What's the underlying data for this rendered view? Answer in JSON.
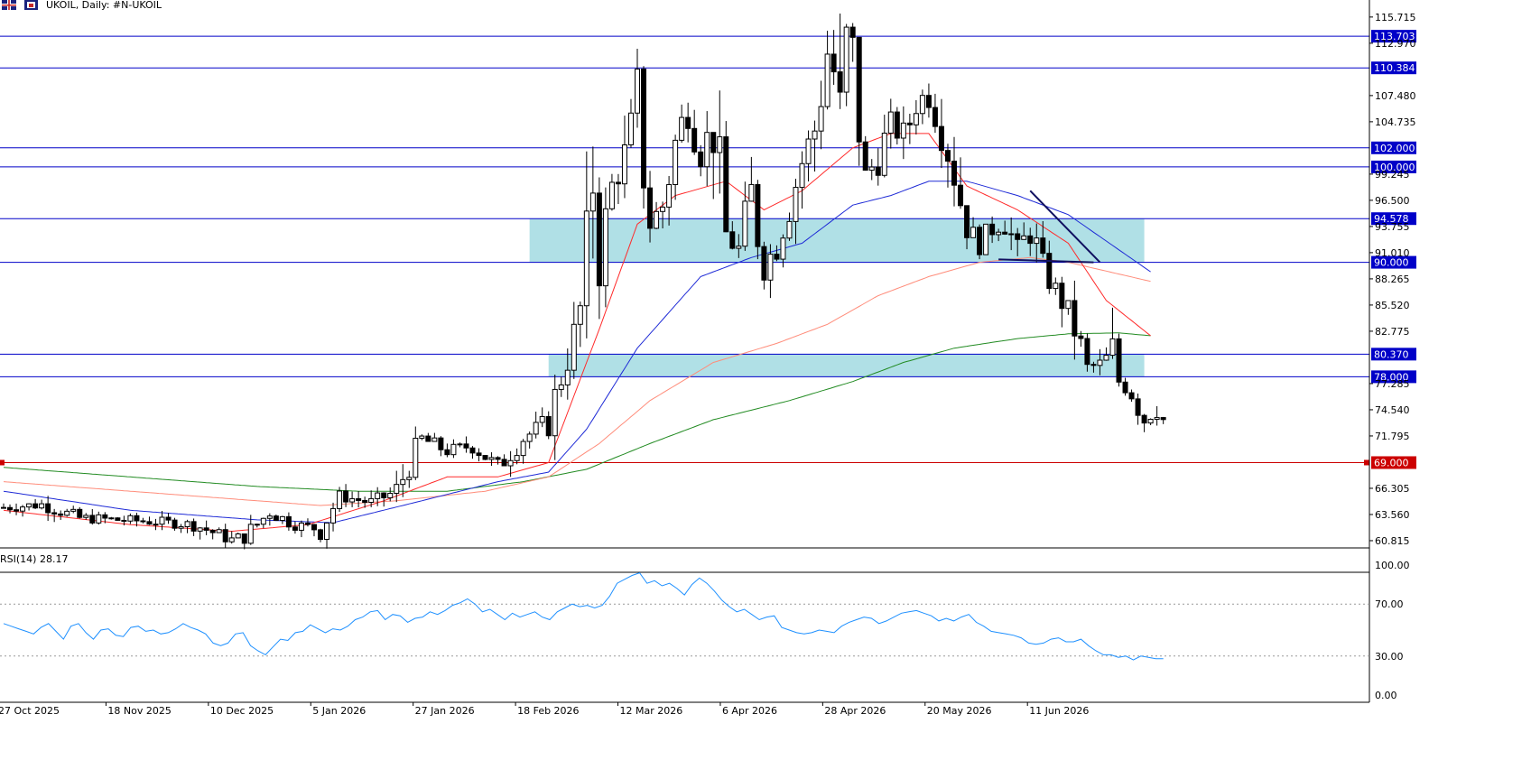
{
  "header": {
    "symbol_label": "UKOIL, Daily:  #N-UKOIL",
    "icon_flag": "uk-flag-icon",
    "icon_instrument": "instrument-icon"
  },
  "rsi": {
    "label": "RSI(14) 28.17",
    "levels": [
      "100.00",
      "70.00",
      "30.00",
      "0.00"
    ]
  },
  "chart_data": [
    {
      "type": "candlestick",
      "title": "UKOIL, Daily:  #N-UKOIL",
      "ylim": [
        57.5,
        117.5
      ],
      "ytick_labels": [
        "115.715",
        "112.970",
        "107.480",
        "104.735",
        "99.245",
        "96.500",
        "93.755",
        "91.010",
        "88.265",
        "85.520",
        "82.775",
        "77.285",
        "74.540",
        "71.795",
        "66.305",
        "63.560",
        "60.815"
      ],
      "yticks": [
        115.715,
        112.97,
        107.48,
        104.735,
        99.245,
        96.5,
        93.755,
        91.01,
        88.265,
        85.52,
        82.775,
        77.285,
        74.54,
        71.795,
        66.305,
        63.56,
        60.815
      ],
      "x_dates": [
        "27 Oct 2025",
        "18 Nov 2025",
        "10 Dec 2025",
        "5 Jan 2026",
        "27 Jan 2026",
        "18 Feb 2026",
        "12 Mar 2026",
        "6 Apr 2026",
        "28 Apr 2026",
        "20 May 2026",
        "11 Jun 2026"
      ],
      "x_date_index": [
        0,
        16,
        32,
        48,
        64,
        80,
        96,
        112,
        128,
        144,
        160
      ],
      "bar_count": 173,
      "level_lines": [
        {
          "value": 113.703,
          "label": "113.703",
          "color": "#0000c8"
        },
        {
          "value": 110.384,
          "label": "110.384",
          "color": "#0000c8"
        },
        {
          "value": 102.0,
          "label": "102.000",
          "color": "#0000c8"
        },
        {
          "value": 100.0,
          "label": "100.000",
          "color": "#0000c8"
        },
        {
          "value": 94.578,
          "label": "94.578",
          "color": "#0000c8"
        },
        {
          "value": 90.0,
          "label": "90.000",
          "color": "#0000c8"
        },
        {
          "value": 80.37,
          "label": "80.370",
          "color": "#0000c8"
        },
        {
          "value": 78.0,
          "label": "78.000",
          "color": "#0000c8"
        },
        {
          "value": 69.0,
          "label": "69.000",
          "color": "#cc0000"
        }
      ],
      "zones": [
        {
          "from_bar": 83,
          "to_bar": 180,
          "low": 90.0,
          "high": 94.578
        },
        {
          "from_bar": 86,
          "to_bar": 180,
          "low": 78.0,
          "high": 80.37
        }
      ],
      "anchors": [
        [
          0,
          64.3
        ],
        [
          6,
          64.6
        ],
        [
          12,
          63.2
        ],
        [
          18,
          63.0
        ],
        [
          24,
          62.8
        ],
        [
          30,
          62.5
        ],
        [
          36,
          60.9
        ],
        [
          38,
          61.3
        ],
        [
          42,
          63.8
        ],
        [
          46,
          62.5
        ],
        [
          50,
          62.0
        ],
        [
          53,
          65.5
        ],
        [
          58,
          64.8
        ],
        [
          62,
          66.0
        ],
        [
          66,
          71.5
        ],
        [
          70,
          70.2
        ],
        [
          74,
          70.8
        ],
        [
          78,
          68.5
        ],
        [
          82,
          71.5
        ],
        [
          86,
          73.5
        ],
        [
          88,
          78.0
        ],
        [
          90,
          82.0
        ],
        [
          92,
          88.0
        ],
        [
          93,
          99.5
        ],
        [
          94,
          90.0
        ],
        [
          96,
          98.0
        ],
        [
          98,
          101.0
        ],
        [
          100,
          106.5
        ],
        [
          102,
          94.0
        ],
        [
          104,
          96.0
        ],
        [
          106,
          102.5
        ],
        [
          108,
          106.5
        ],
        [
          110,
          101.5
        ],
        [
          112,
          104.5
        ],
        [
          114,
          93.0
        ],
        [
          116,
          91.0
        ],
        [
          118,
          97.0
        ],
        [
          120,
          89.5
        ],
        [
          122,
          92.0
        ],
        [
          124,
          96.0
        ],
        [
          126,
          100.5
        ],
        [
          128,
          104.0
        ],
        [
          130,
          112.0
        ],
        [
          131,
          110.0
        ],
        [
          132,
          104.0
        ],
        [
          133,
          113.5
        ],
        [
          134,
          111.0
        ],
        [
          135,
          104.5
        ],
        [
          136,
          99.0
        ],
        [
          138,
          101.0
        ],
        [
          140,
          104.5
        ],
        [
          142,
          103.0
        ],
        [
          144,
          106.5
        ],
        [
          146,
          108.0
        ],
        [
          148,
          104.0
        ],
        [
          150,
          99.5
        ],
        [
          152,
          93.5
        ],
        [
          154,
          92.0
        ],
        [
          156,
          93.5
        ],
        [
          158,
          94.5
        ],
        [
          160,
          91.0
        ],
        [
          162,
          93.5
        ],
        [
          164,
          89.5
        ],
        [
          166,
          87.0
        ],
        [
          167,
          86.0
        ],
        [
          169,
          83.0
        ],
        [
          171,
          79.0
        ],
        [
          173,
          79.2
        ],
        [
          175,
          80.5
        ],
        [
          176,
          77.5
        ],
        [
          178,
          76.5
        ],
        [
          180,
          73.5
        ],
        [
          182,
          75.0
        ],
        [
          183,
          73.5
        ]
      ],
      "ma_red": [
        [
          0,
          64.0
        ],
        [
          20,
          62.5
        ],
        [
          36,
          61.8
        ],
        [
          48,
          62.5
        ],
        [
          60,
          65.0
        ],
        [
          70,
          67.5
        ],
        [
          78,
          67.5
        ],
        [
          86,
          69.0
        ],
        [
          94,
          83.0
        ],
        [
          100,
          94.0
        ],
        [
          106,
          97.0
        ],
        [
          114,
          98.5
        ],
        [
          120,
          95.5
        ],
        [
          126,
          97.5
        ],
        [
          134,
          102.0
        ],
        [
          140,
          103.5
        ],
        [
          146,
          103.5
        ],
        [
          152,
          98.0
        ],
        [
          160,
          95.5
        ],
        [
          168,
          92.0
        ],
        [
          174,
          86.0
        ],
        [
          181,
          82.3
        ]
      ],
      "ma_blue": [
        [
          0,
          66.0
        ],
        [
          20,
          64.0
        ],
        [
          40,
          63.0
        ],
        [
          52,
          62.7
        ],
        [
          66,
          65.0
        ],
        [
          78,
          67.0
        ],
        [
          86,
          68.0
        ],
        [
          92,
          72.5
        ],
        [
          100,
          81.0
        ],
        [
          110,
          88.5
        ],
        [
          118,
          90.5
        ],
        [
          126,
          92.0
        ],
        [
          134,
          96.0
        ],
        [
          140,
          97.0
        ],
        [
          146,
          98.5
        ],
        [
          152,
          98.5
        ],
        [
          160,
          97.0
        ],
        [
          168,
          95.0
        ],
        [
          181,
          89.0
        ]
      ],
      "ma_salmon": [
        [
          0,
          67.0
        ],
        [
          20,
          66.0
        ],
        [
          36,
          65.2
        ],
        [
          50,
          64.5
        ],
        [
          62,
          65.0
        ],
        [
          76,
          66.0
        ],
        [
          86,
          67.5
        ],
        [
          94,
          71.0
        ],
        [
          102,
          75.5
        ],
        [
          112,
          79.5
        ],
        [
          122,
          81.5
        ],
        [
          130,
          83.5
        ],
        [
          138,
          86.5
        ],
        [
          146,
          88.5
        ],
        [
          154,
          90.0
        ],
        [
          162,
          90.5
        ],
        [
          168,
          90.0
        ],
        [
          181,
          88.0
        ]
      ],
      "ma_green": [
        [
          0,
          68.5
        ],
        [
          20,
          67.5
        ],
        [
          40,
          66.5
        ],
        [
          56,
          66.0
        ],
        [
          70,
          66.0
        ],
        [
          82,
          67.0
        ],
        [
          92,
          68.3
        ],
        [
          102,
          71.0
        ],
        [
          112,
          73.5
        ],
        [
          124,
          75.5
        ],
        [
          134,
          77.5
        ],
        [
          142,
          79.5
        ],
        [
          150,
          81.0
        ],
        [
          160,
          82.0
        ],
        [
          168,
          82.5
        ],
        [
          176,
          82.6
        ],
        [
          181,
          82.3
        ]
      ],
      "trend_lines": [
        {
          "from": [
            162,
            97.5
          ],
          "to": [
            173,
            90.0
          ]
        },
        {
          "from": [
            157,
            90.3
          ],
          "to": [
            172,
            90.0
          ]
        }
      ]
    },
    {
      "type": "line",
      "title": "RSI(14) 28.17",
      "ylim": [
        0,
        100
      ],
      "yticks": [
        100,
        70,
        30,
        0
      ],
      "ytick_labels": [
        "100.00",
        "70.00",
        "30.00",
        "0.00"
      ],
      "levels": [
        70,
        30
      ],
      "series": [
        {
          "color": "#1e90ff",
          "values": [
            55,
            53,
            51,
            49,
            47,
            52,
            55,
            49,
            43,
            53,
            55,
            48,
            43,
            50,
            51,
            46,
            45,
            52,
            53,
            49,
            50,
            47,
            48,
            51,
            55,
            52,
            50,
            47,
            40,
            38,
            40,
            47,
            48,
            38,
            34,
            31,
            37,
            43,
            42,
            48,
            49,
            54,
            51,
            48,
            51,
            50,
            53,
            58,
            60,
            64,
            65,
            58,
            62,
            61,
            56,
            59,
            60,
            64,
            62,
            65,
            69,
            71,
            74,
            70,
            64,
            66,
            62,
            58,
            63,
            60,
            62,
            64,
            60,
            58,
            64,
            67,
            70,
            68,
            69,
            67,
            69,
            76,
            86,
            89,
            92,
            94,
            86,
            88,
            84,
            86,
            82,
            77,
            85,
            90,
            86,
            80,
            73,
            68,
            64,
            66,
            62,
            58,
            60,
            61,
            52,
            50,
            48,
            47,
            48,
            50,
            49,
            48,
            53,
            56,
            58,
            60,
            59,
            55,
            57,
            60,
            63,
            64,
            65,
            63,
            61,
            57,
            59,
            57,
            60,
            62,
            56,
            53,
            49,
            48,
            47,
            46,
            44,
            40,
            39,
            40,
            43,
            44,
            41,
            41,
            43,
            38,
            34,
            31,
            31,
            29,
            30,
            27,
            30,
            29,
            28,
            28
          ]
        }
      ]
    }
  ],
  "colors": {
    "bull_fill": "#ffffff",
    "bear_fill": "#000000",
    "candle_stroke": "#000000",
    "level_blue": "#0000c8",
    "level_red": "#cc0000",
    "zone_fill": "#b0e0e6",
    "ma_red": "#ff2a2a",
    "ma_blue": "#1e2ad6",
    "ma_salmon": "#ff8c7a",
    "ma_green": "#228b22",
    "rsi_line": "#1e90ff"
  }
}
